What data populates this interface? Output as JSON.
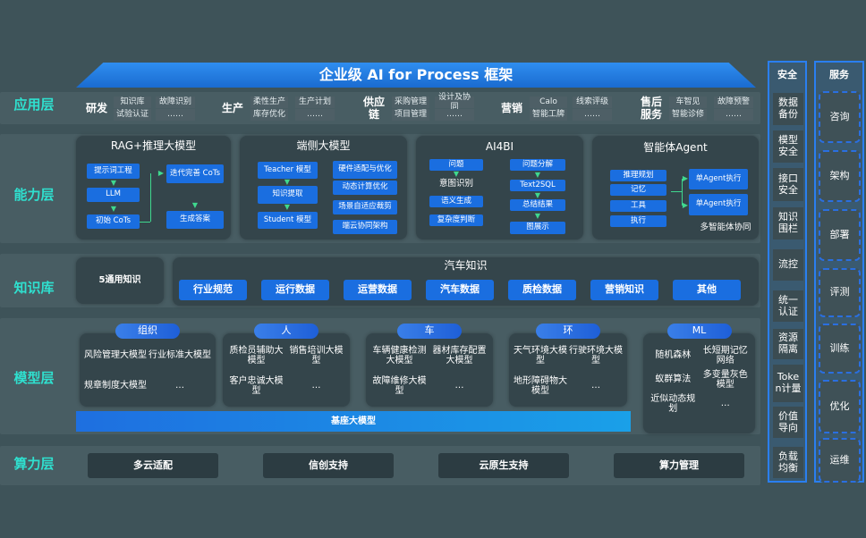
{
  "title": "企业级 AI for Process 框架",
  "layers": [
    "应用层",
    "能力层",
    "知识库",
    "模型层",
    "算力层"
  ],
  "app": [
    {
      "name": "研发",
      "cells": [
        [
          "知识库",
          "试验认证"
        ],
        [
          "故障识别",
          "……"
        ]
      ]
    },
    {
      "name": "生产",
      "cells": [
        [
          "柔性生产",
          "库存优化"
        ],
        [
          "生产计划",
          "……"
        ]
      ]
    },
    {
      "name": "供应链",
      "cells": [
        [
          "采购管理",
          "项目管理"
        ],
        [
          "设计及协同",
          "……"
        ]
      ]
    },
    {
      "name": "营销",
      "cells": [
        [
          "Calo",
          "智能工牌"
        ],
        [
          "线索评级",
          "……"
        ]
      ]
    },
    {
      "name": "售后服务",
      "cells": [
        [
          "车智见",
          "智能诊修"
        ],
        [
          "故障预警",
          "……"
        ]
      ]
    }
  ],
  "capability": {
    "rag": {
      "title": "RAG+推理大模型",
      "items": [
        "提示词工程",
        "LLM",
        "初始 CoTs",
        "迭代完善 CoTs",
        "生成答案"
      ]
    },
    "edge": {
      "title": "端侧大模型",
      "items": [
        "Teacher 模型",
        "知识提取",
        "Student 模型",
        "硬件适配与优化",
        "动态计算优化",
        "场景自适应裁剪",
        "端云协同架构"
      ]
    },
    "ai4bi": {
      "title": "AI4BI",
      "items": [
        "问题",
        "意图识别",
        "语义生成",
        "复杂度判断",
        "问题分解",
        "Text2SQL",
        "总结结果",
        "图展示"
      ]
    },
    "agent": {
      "title": "智能体Agent",
      "items": [
        "推理规划",
        "记忆",
        "工具",
        "执行",
        "单Agent执行",
        "单Agent执行",
        "多智能体协同"
      ]
    }
  },
  "knowledge": {
    "general": "5通用知识",
    "auto_title": "汽车知识",
    "items": [
      "行业规范",
      "运行数据",
      "运营数据",
      "汽车数据",
      "质检数据",
      "营销知识",
      "其他"
    ]
  },
  "models": [
    {
      "tag": "组织",
      "items": [
        "风险管理大模型",
        "行业标准大模型",
        "规章制度大模型",
        "…"
      ]
    },
    {
      "tag": "人",
      "items": [
        "质检员辅助大模型",
        "销售培训大模型",
        "客户忠诚大模型",
        "…"
      ]
    },
    {
      "tag": "车",
      "items": [
        "车辆健康检测大模型",
        "器材库存配置大模型",
        "故障维修大模型",
        "…"
      ]
    },
    {
      "tag": "环",
      "items": [
        "天气环境大模型",
        "行驶环境大模型",
        "地形障碍物大模型",
        "…"
      ]
    },
    {
      "tag": "ML",
      "items": [
        "随机森林",
        "长短期记忆网络",
        "蚁群算法",
        "多变量灰色模型",
        "近似动态规划",
        "…"
      ]
    }
  ],
  "base_model": "基座大模型",
  "compute": [
    "多云适配",
    "信创支持",
    "云原生支持",
    "算力管理"
  ],
  "security": {
    "title": "安全",
    "items": [
      "数据备份",
      "模型安全",
      "接口安全",
      "知识围栏",
      "流控",
      "统一认证",
      "资源隔离",
      "Token计量",
      "价值导向",
      "负载均衡"
    ]
  },
  "service": {
    "title": "服务",
    "items": [
      "咨询",
      "架构",
      "部署",
      "评测",
      "训练",
      "优化",
      "运维"
    ]
  },
  "colors": {
    "background": "#3e5359",
    "accent": "#1a6ee0",
    "layer_label": "#2fe0cf",
    "arrow": "#3fd88e"
  }
}
